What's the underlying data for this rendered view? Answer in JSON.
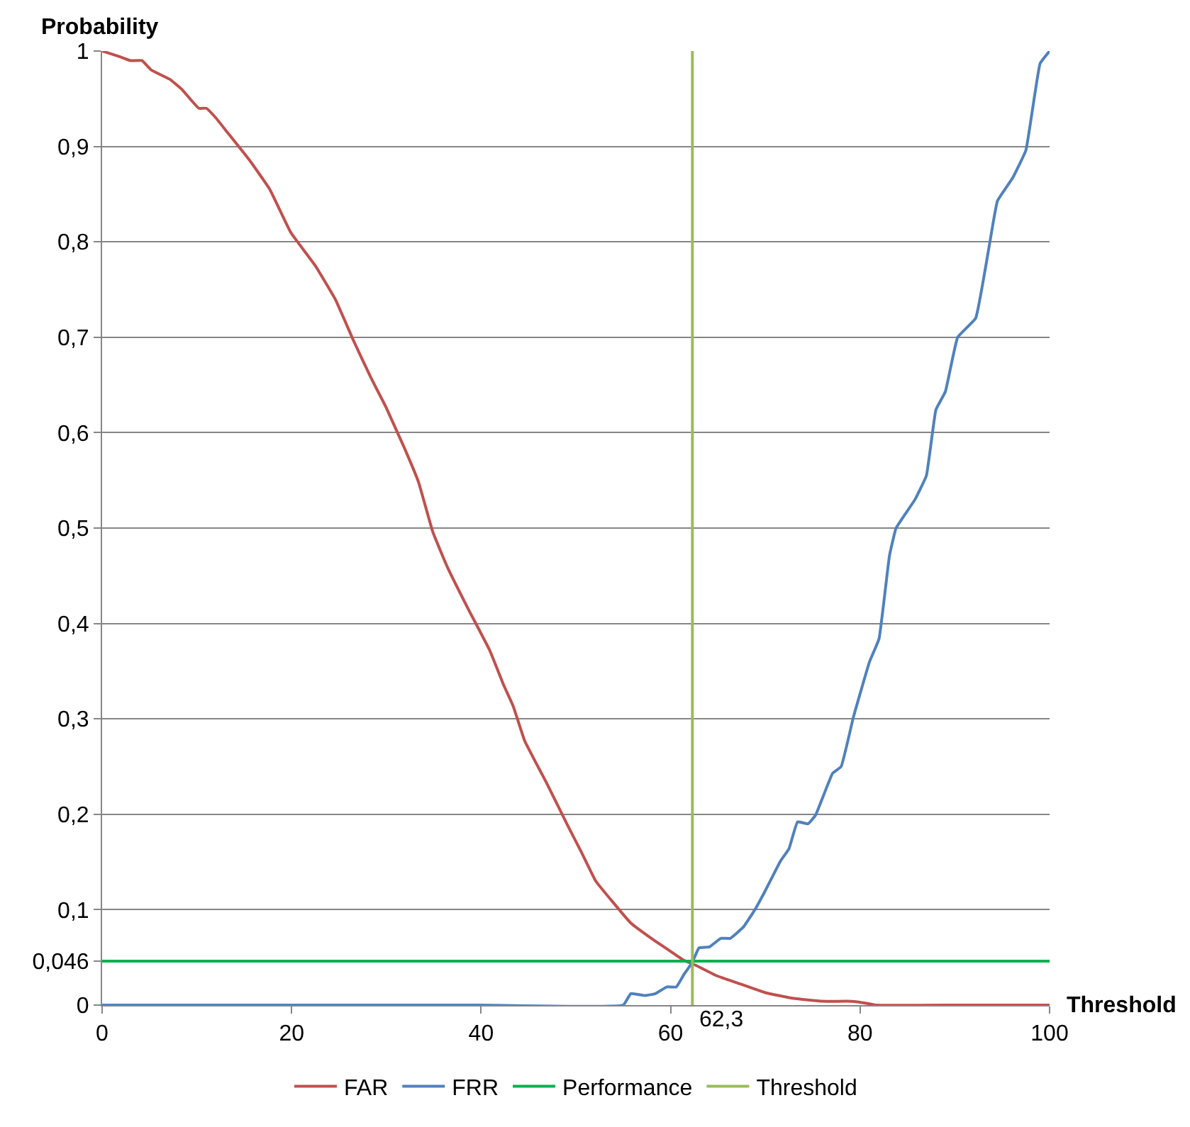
{
  "chart_data": {
    "type": "line",
    "xlabel": "Threshold",
    "ylabel": "Probability",
    "xlim": [
      0,
      100
    ],
    "ylim": [
      0,
      1
    ],
    "xticks": [
      0,
      20,
      40,
      60,
      80,
      100
    ],
    "yticks": [
      {
        "value": 0,
        "label": "0"
      },
      {
        "value": 0.046,
        "label": "0,046"
      },
      {
        "value": 0.1,
        "label": "0,1"
      },
      {
        "value": 0.2,
        "label": "0,2"
      },
      {
        "value": 0.3,
        "label": "0,3"
      },
      {
        "value": 0.4,
        "label": "0,4"
      },
      {
        "value": 0.5,
        "label": "0,5"
      },
      {
        "value": 0.6,
        "label": "0,6"
      },
      {
        "value": 0.7,
        "label": "0,7"
      },
      {
        "value": 0.8,
        "label": "0,8"
      },
      {
        "value": 0.9,
        "label": "0,9"
      },
      {
        "value": 1,
        "label": "1"
      }
    ],
    "grid": "y",
    "legend": "bottom",
    "marker": "none",
    "line_style": "solid",
    "annotations": [
      {
        "text": "62,3",
        "x": 62.3,
        "y": 0
      }
    ],
    "series": [
      {
        "name": "FAR",
        "color": "#c0504d",
        "x": [
          0,
          1.9,
          3,
          4.2,
          5.2,
          7.2,
          8.4,
          10.2,
          11,
          12,
          13.2,
          15.6,
          17.7,
          19.9,
          22.5,
          24.6,
          26.6,
          28.4,
          29.9,
          31.9,
          33.4,
          34.9,
          36.4,
          38.6,
          40.9,
          42.4,
          43.4,
          44.6,
          46.9,
          49.1,
          50.6,
          52.1,
          53.9,
          55.8,
          58.1,
          59.6,
          61.4,
          62.6,
          64.8,
          67.1,
          70,
          73,
          76,
          78.7,
          80,
          81.7,
          90,
          100
        ],
        "values": [
          1,
          0.994,
          0.99,
          0.99,
          0.98,
          0.97,
          0.96,
          0.94,
          0.94,
          0.93,
          0.915,
          0.885,
          0.855,
          0.81,
          0.775,
          0.74,
          0.695,
          0.657,
          0.628,
          0.584,
          0.548,
          0.496,
          0.46,
          0.416,
          0.372,
          0.335,
          0.313,
          0.277,
          0.233,
          0.189,
          0.16,
          0.13,
          0.108,
          0.086,
          0.069,
          0.059,
          0.047,
          0.042,
          0.031,
          0.023,
          0.013,
          0.007,
          0.004,
          0.004,
          0.003,
          0,
          0,
          0
        ]
      },
      {
        "name": "FRR",
        "color": "#4f81bd",
        "x": [
          0,
          20,
          40,
          55,
          55.8,
          57.3,
          58.4,
          59.6,
          60.6,
          61.4,
          62.3,
          63,
          64.1,
          65.3,
          66.3,
          67.7,
          68.9,
          70,
          71.6,
          72.5,
          73.4,
          74.5,
          75.3,
          77.1,
          78,
          79.3,
          81,
          82,
          83.1,
          83.8,
          85.8,
          87,
          88,
          89,
          90.3,
          92.2,
          93.6,
          94.5,
          96.1,
          97.5,
          99,
          100
        ],
        "values": [
          0,
          0,
          0,
          0,
          0.012,
          0.01,
          0.012,
          0.019,
          0.019,
          0.032,
          0.045,
          0.06,
          0.061,
          0.07,
          0.07,
          0.082,
          0.1,
          0.12,
          0.151,
          0.164,
          0.192,
          0.19,
          0.199,
          0.243,
          0.25,
          0.302,
          0.36,
          0.384,
          0.471,
          0.5,
          0.53,
          0.555,
          0.624,
          0.643,
          0.7,
          0.72,
          0.794,
          0.843,
          0.867,
          0.896,
          0.987,
          1
        ]
      },
      {
        "name": "Performance",
        "color": "#00b050",
        "x": [
          0,
          100
        ],
        "values": [
          0.046,
          0.046
        ]
      },
      {
        "name": "Threshold",
        "color": "#9bbb59",
        "x": [
          62.3,
          62.3
        ],
        "values": [
          0,
          1
        ]
      }
    ]
  }
}
